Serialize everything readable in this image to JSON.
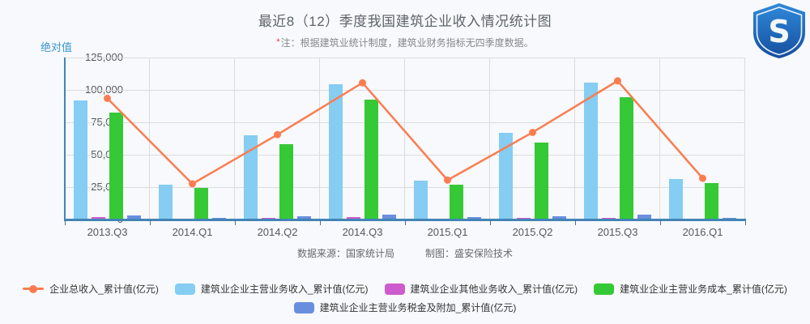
{
  "header": {
    "title": "最近8（12）季度我国建筑企业收入情况统计图",
    "note_star": "*",
    "note": "注：根据建筑业统计制度，建筑业财务指标无四季度数据。"
  },
  "logo": {
    "letter": "S"
  },
  "footer": {
    "source_label": "数据来源：",
    "source_value": "国家统计局",
    "maker_label": "制图：",
    "maker_value": "盛安保险技术"
  },
  "chart_data": {
    "type": "bar",
    "title": "最近8（12）季度我国建筑企业收入情况统计图",
    "subtitle": "注：根据建筑业统计制度，建筑业财务指标无四季度数据。",
    "y_axis_name": "绝对值",
    "categories": [
      "2013.Q3",
      "2014.Q1",
      "2014.Q2",
      "2014.Q3",
      "2015.Q1",
      "2015.Q2",
      "2015.Q3",
      "2016.Q1"
    ],
    "series": [
      {
        "key": "total-revenue",
        "name": "企业总收入_累计值(亿元)",
        "type": "line",
        "color": "#FA7D51",
        "values": [
          93500,
          27500,
          65500,
          105500,
          30400,
          67200,
          107000,
          31800
        ]
      },
      {
        "key": "main-revenue",
        "name": "建筑业企业主营业务收入_累计值(亿元)",
        "type": "bar",
        "color": "#85CDF2",
        "values": [
          92000,
          26800,
          64800,
          104200,
          29700,
          66800,
          105600,
          31300
        ]
      },
      {
        "key": "other-revenue",
        "name": "建筑业企业其他业务收入_累计值(亿元)",
        "type": "bar",
        "color": "#CD5CCD",
        "values": [
          1800,
          900,
          1200,
          1800,
          900,
          1500,
          1200,
          700
        ]
      },
      {
        "key": "main-cost",
        "name": "建筑业企业主营业务成本_累计值(亿元)",
        "type": "bar",
        "color": "#35C935",
        "values": [
          82500,
          24200,
          58100,
          92300,
          26600,
          59500,
          94200,
          28400
        ]
      },
      {
        "key": "tax-surcharge",
        "name": "建筑业企业主营业务税金及附加_累计值(亿元)",
        "type": "bar",
        "color": "#6A8EDE",
        "values": [
          3400,
          1500,
          2600,
          3600,
          1800,
          2600,
          3500,
          1400
        ]
      }
    ],
    "ylim": [
      0,
      125000
    ],
    "y_tick_step": 25000,
    "grid": true,
    "legend_position": "bottom",
    "legend_rows": [
      4,
      1
    ]
  },
  "colors": {
    "background": "#F7F9FC",
    "axis": "#4384B6",
    "gridline": "#DCDCDC",
    "title_text": "#5E646A",
    "note_text": "#85888B",
    "note_star": "#E23B3B",
    "tick_text": "#55595C",
    "y_name_text": "#3A96D2",
    "legend_text": "#333333",
    "logo_top": "#2E8ADA",
    "logo_bottom": "#174E9E"
  }
}
